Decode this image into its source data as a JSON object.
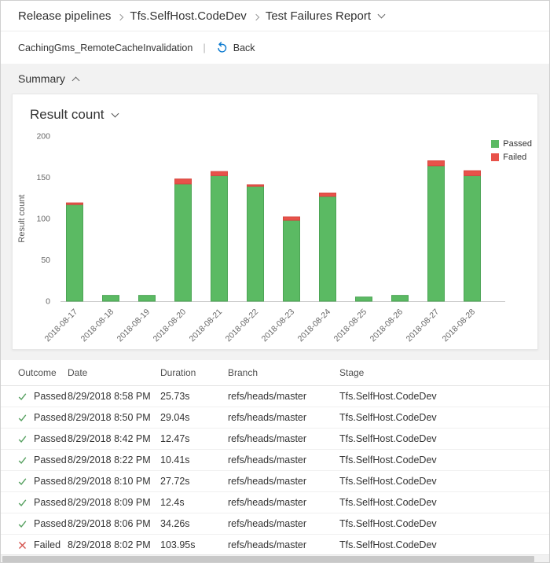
{
  "breadcrumb": {
    "items": [
      "Release pipelines",
      "Tfs.SelfHost.CodeDev",
      "Test Failures Report"
    ]
  },
  "toolbar": {
    "pipeline_name": "CachingGms_RemoteCacheInvalidation",
    "back_label": "Back"
  },
  "summary": {
    "title": "Summary"
  },
  "chart": {
    "title": "Result count",
    "legend": {
      "passed": "Passed",
      "failed": "Failed"
    }
  },
  "chart_data": {
    "type": "bar",
    "stacked": true,
    "title": "Result count",
    "ylabel": "Result count",
    "ylim": [
      0,
      200
    ],
    "yticks": [
      0,
      50,
      100,
      150,
      200
    ],
    "grid": false,
    "legend_position": "top-right",
    "categories": [
      "2018-08-17",
      "2018-08-18",
      "2018-08-19",
      "2018-08-20",
      "2018-08-21",
      "2018-08-22",
      "2018-08-23",
      "2018-08-24",
      "2018-08-25",
      "2018-08-26",
      "2018-08-27",
      "2018-08-28"
    ],
    "series": [
      {
        "name": "Passed",
        "color": "#5bba63",
        "stroke": "#4ca455",
        "values": [
          117,
          7,
          7,
          142,
          152,
          139,
          98,
          127,
          5,
          7,
          164,
          152
        ]
      },
      {
        "name": "Failed",
        "color": "#e8524a",
        "stroke": "#d64740",
        "values": [
          2,
          0,
          0,
          6,
          5,
          2,
          4,
          4,
          0,
          0,
          6,
          6
        ]
      }
    ]
  },
  "table": {
    "columns": [
      "Outcome",
      "Date",
      "Duration",
      "Branch",
      "Stage"
    ],
    "rows": [
      {
        "outcome": "Passed",
        "date": "8/29/2018 8:58 PM",
        "duration": "25.73s",
        "branch": "refs/heads/master",
        "stage": "Tfs.SelfHost.CodeDev"
      },
      {
        "outcome": "Passed",
        "date": "8/29/2018 8:50 PM",
        "duration": "29.04s",
        "branch": "refs/heads/master",
        "stage": "Tfs.SelfHost.CodeDev"
      },
      {
        "outcome": "Passed",
        "date": "8/29/2018 8:42 PM",
        "duration": "12.47s",
        "branch": "refs/heads/master",
        "stage": "Tfs.SelfHost.CodeDev"
      },
      {
        "outcome": "Passed",
        "date": "8/29/2018 8:22 PM",
        "duration": "10.41s",
        "branch": "refs/heads/master",
        "stage": "Tfs.SelfHost.CodeDev"
      },
      {
        "outcome": "Passed",
        "date": "8/29/2018 8:10 PM",
        "duration": "27.72s",
        "branch": "refs/heads/master",
        "stage": "Tfs.SelfHost.CodeDev"
      },
      {
        "outcome": "Passed",
        "date": "8/29/2018 8:09 PM",
        "duration": "12.4s",
        "branch": "refs/heads/master",
        "stage": "Tfs.SelfHost.CodeDev"
      },
      {
        "outcome": "Passed",
        "date": "8/29/2018 8:06 PM",
        "duration": "34.26s",
        "branch": "refs/heads/master",
        "stage": "Tfs.SelfHost.CodeDev"
      },
      {
        "outcome": "Failed",
        "date": "8/29/2018 8:02 PM",
        "duration": "103.95s",
        "branch": "refs/heads/master",
        "stage": "Tfs.SelfHost.CodeDev"
      }
    ]
  },
  "icons": {
    "breadcrumb_separator": "chevron-right",
    "report_dropdown": "chevron-down",
    "back": "undo-arrow",
    "summary_collapse": "chevron-up",
    "chart_dropdown": "chevron-down",
    "passed": "check",
    "failed": "cross"
  },
  "colors": {
    "passed_green": "#5bba63",
    "failed_red": "#e8524a",
    "accent_blue": "#0b7ad0",
    "check_green": "#56a060",
    "cross_red": "#d4524c",
    "axis_text": "#666666",
    "band_gray": "#f2f2f2"
  }
}
